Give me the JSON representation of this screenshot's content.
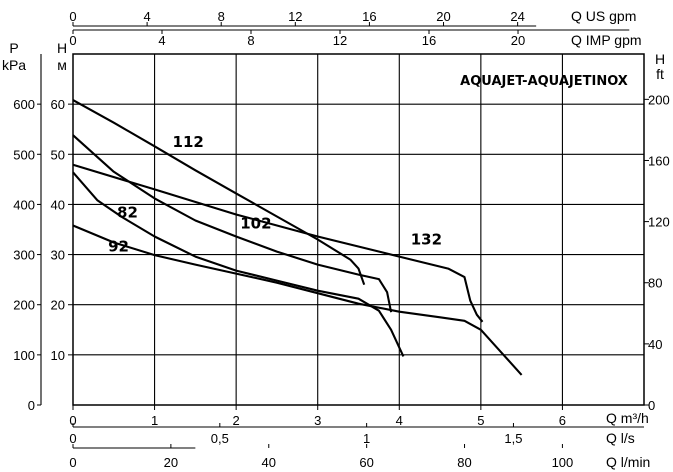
{
  "chart_data": {
    "type": "line",
    "title": "AQUAJET-AQUAJETINOX",
    "xlabel": "Q m³/h",
    "ylabel": "H м",
    "xlim": [
      0,
      7
    ],
    "ylim": [
      0,
      70
    ],
    "x_ticks": [
      "0",
      "1",
      "2",
      "3",
      "4",
      "5",
      "6"
    ],
    "y_ticks": [
      "10",
      "20",
      "30",
      "40",
      "50",
      "60"
    ],
    "secondary_axes": {
      "top_us": {
        "label": "Q US gpm",
        "ticks": [
          "0",
          "4",
          "8",
          "12",
          "16",
          "20",
          "24"
        ],
        "factor": 4.403
      },
      "top_imp": {
        "label": "Q IMP gpm",
        "ticks": [
          "0",
          "4",
          "8",
          "12",
          "16",
          "20"
        ],
        "factor": 3.666
      },
      "bottom_ls": {
        "label": "Q l/s",
        "ticks": [
          "0",
          "0,5",
          "1",
          "1,5"
        ],
        "factor": 0.2778
      },
      "bottom_lmin": {
        "label": "Q l/min",
        "ticks": [
          "0",
          "20",
          "40",
          "60",
          "80",
          "100"
        ],
        "factor": 16.667
      },
      "left_kpa": {
        "label": "P\nkPa",
        "ticks": [
          "0",
          "100",
          "200",
          "300",
          "400",
          "500",
          "600"
        ],
        "factor": 10
      },
      "right_ft": {
        "label": "H\nft",
        "ticks": [
          "0",
          "40",
          "80",
          "120",
          "160",
          "200"
        ],
        "factor": 3.281
      }
    },
    "series": [
      {
        "name": "112",
        "label_at": [
          1.22,
          51.5
        ],
        "points": [
          [
            0,
            60.8
          ],
          [
            0.5,
            56.3
          ],
          [
            1.0,
            51.6
          ],
          [
            1.5,
            46.8
          ],
          [
            2.0,
            42.2
          ],
          [
            2.5,
            37.6
          ],
          [
            3.0,
            33.0
          ],
          [
            3.4,
            29.0
          ],
          [
            3.5,
            27.2
          ],
          [
            3.57,
            24.0
          ]
        ]
      },
      {
        "name": "102",
        "label_at": [
          2.05,
          35.2
        ],
        "points": [
          [
            0,
            53.8
          ],
          [
            0.5,
            46.5
          ],
          [
            1.0,
            41.2
          ],
          [
            1.5,
            36.8
          ],
          [
            2.0,
            33.6
          ],
          [
            2.5,
            30.6
          ],
          [
            3.0,
            28.0
          ],
          [
            3.5,
            26.0
          ],
          [
            3.75,
            25.1
          ],
          [
            3.85,
            22.5
          ],
          [
            3.9,
            18.5
          ]
        ]
      },
      {
        "name": "82",
        "label_at": [
          0.54,
          37.4
        ],
        "points": [
          [
            0,
            46.4
          ],
          [
            0.3,
            40.8
          ],
          [
            0.6,
            37.5
          ],
          [
            1.0,
            33.6
          ],
          [
            1.5,
            29.6
          ],
          [
            2.0,
            26.8
          ],
          [
            2.5,
            24.8
          ],
          [
            3.0,
            22.8
          ],
          [
            3.5,
            21.2
          ],
          [
            3.75,
            18.8
          ],
          [
            3.9,
            15.0
          ],
          [
            4.05,
            9.7
          ]
        ]
      },
      {
        "name": "92",
        "label_at": [
          0.43,
          30.6
        ],
        "points": [
          [
            0,
            35.8
          ],
          [
            0.5,
            32.4
          ],
          [
            1.0,
            29.9
          ],
          [
            1.5,
            28.0
          ],
          [
            2.0,
            26.2
          ],
          [
            2.5,
            24.4
          ],
          [
            3.0,
            22.3
          ],
          [
            3.5,
            20.2
          ],
          [
            4.0,
            18.6
          ],
          [
            4.5,
            17.5
          ],
          [
            4.8,
            16.8
          ],
          [
            5.0,
            15.0
          ],
          [
            5.25,
            10.5
          ],
          [
            5.5,
            6.0
          ]
        ]
      },
      {
        "name": "132",
        "label_at": [
          4.14,
          32.0
        ],
        "points": [
          [
            0,
            47.9
          ],
          [
            1.0,
            43.0
          ],
          [
            2.0,
            38.0
          ],
          [
            3.0,
            33.6
          ],
          [
            4.0,
            29.6
          ],
          [
            4.6,
            27.2
          ],
          [
            4.8,
            25.5
          ],
          [
            4.87,
            20.8
          ],
          [
            4.95,
            18.0
          ],
          [
            5.02,
            16.6
          ]
        ]
      }
    ]
  }
}
